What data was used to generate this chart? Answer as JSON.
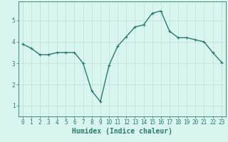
{
  "x": [
    0,
    1,
    2,
    3,
    4,
    5,
    6,
    7,
    8,
    9,
    10,
    11,
    12,
    13,
    14,
    15,
    16,
    17,
    18,
    19,
    20,
    21,
    22,
    23
  ],
  "y": [
    3.9,
    3.7,
    3.4,
    3.4,
    3.5,
    3.5,
    3.5,
    3.0,
    1.7,
    1.2,
    2.9,
    3.8,
    4.25,
    4.7,
    4.8,
    5.35,
    5.45,
    4.5,
    4.2,
    4.2,
    4.1,
    4.0,
    3.5,
    3.05
  ],
  "line_color": "#2a7a6a",
  "marker": "+",
  "marker_size": 3,
  "bg_color": "#d9f5f0",
  "grid_color": "#c0ddd8",
  "axis_color": "#2a7a6a",
  "xlabel": "Humidex (Indice chaleur)",
  "xlabel_fontsize": 7,
  "ylim": [
    0.5,
    5.9
  ],
  "xlim": [
    -0.5,
    23.5
  ],
  "yticks": [
    1,
    2,
    3,
    4,
    5
  ],
  "xticks": [
    0,
    1,
    2,
    3,
    4,
    5,
    6,
    7,
    8,
    9,
    10,
    11,
    12,
    13,
    14,
    15,
    16,
    17,
    18,
    19,
    20,
    21,
    22,
    23
  ],
  "tick_fontsize": 5.5,
  "line_width": 1.0
}
